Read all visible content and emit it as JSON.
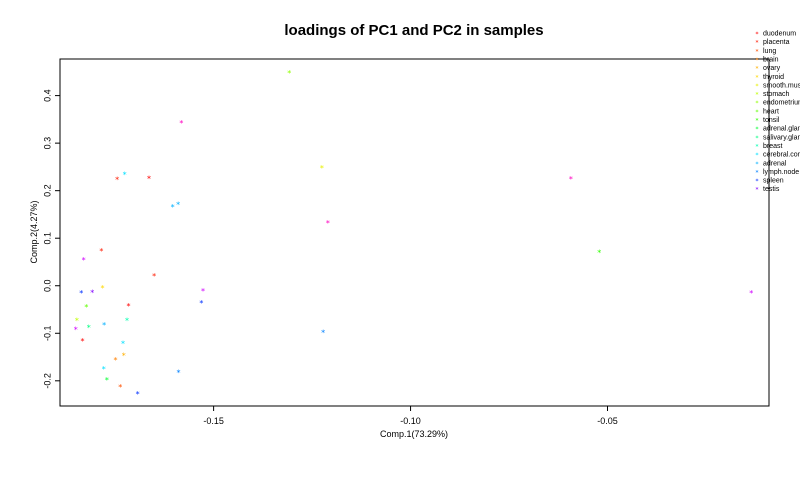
{
  "chart_data": {
    "type": "scatter",
    "title": "loadings of PC1 and PC2 in samples",
    "xlabel": "Comp.1(73.29%)",
    "ylabel": "Comp.2(4.27%)",
    "xlim": [
      -0.189,
      -0.009
    ],
    "ylim": [
      -0.253,
      0.477
    ],
    "xticks": [
      -0.15,
      -0.1,
      -0.05
    ],
    "xtick_labels": [
      "-0.15",
      "-0.10",
      "-0.05"
    ],
    "yticks": [
      -0.2,
      -0.1,
      0.0,
      0.1,
      0.2,
      0.3,
      0.4
    ],
    "ytick_labels": [
      "-0.2",
      "-0.1",
      "0.0",
      "0.1",
      "0.2",
      "0.3",
      "0.4"
    ],
    "marker": "*",
    "legend_position": "top-right",
    "series": [
      {
        "name": "duodenum",
        "color": "#FF0000",
        "points": [
          [
            -0.1833,
            -0.116
          ],
          [
            -0.1664,
            0.226
          ],
          [
            -0.1716,
            -0.043
          ]
        ]
      },
      {
        "name": "placenta",
        "color": "#FF1A00",
        "points": [
          [
            -0.1745,
            0.223
          ],
          [
            -0.1785,
            0.073
          ],
          [
            -0.1651,
            0.021
          ]
        ]
      },
      {
        "name": "lung",
        "color": "#FF5000",
        "points": [
          [
            -0.1737,
            -0.213
          ]
        ]
      },
      {
        "name": "brain",
        "color": "#FF8000",
        "points": [
          [
            -0.1749,
            -0.156
          ]
        ]
      },
      {
        "name": "ovary",
        "color": "#FFB000",
        "points": [
          [
            -0.1728,
            -0.147
          ]
        ]
      },
      {
        "name": "thyroid",
        "color": "#FFD800",
        "points": [
          [
            -0.1782,
            -0.005
          ]
        ]
      },
      {
        "name": "smooth.muscle",
        "color": "#E8F000",
        "points": [
          [
            -0.1225,
            0.248
          ]
        ]
      },
      {
        "name": "stomach",
        "color": "#C0FF00",
        "points": [
          [
            -0.1847,
            -0.073
          ]
        ]
      },
      {
        "name": "endometrium",
        "color": "#90FF00",
        "points": [
          [
            -0.1308,
            0.448
          ]
        ]
      },
      {
        "name": "heart",
        "color": "#60FF00",
        "points": [
          [
            -0.1823,
            -0.045
          ]
        ]
      },
      {
        "name": "tonsil",
        "color": "#30FF00",
        "points": [
          [
            -0.0521,
            0.07
          ]
        ]
      },
      {
        "name": "adrenal.gland",
        "color": "#00FF30",
        "points": [
          [
            -0.1771,
            -0.198
          ]
        ]
      },
      {
        "name": "salivary.gland",
        "color": "#00FF80",
        "points": [
          [
            -0.1817,
            -0.088
          ]
        ]
      },
      {
        "name": "breast",
        "color": "#00FFB0",
        "points": [
          [
            -0.172,
            -0.073
          ]
        ]
      },
      {
        "name": "cerebral.cortex",
        "color": "#00E0FF",
        "points": [
          [
            -0.1779,
            -0.175
          ],
          [
            -0.1726,
            0.234
          ],
          [
            -0.173,
            -0.121
          ]
        ]
      },
      {
        "name": "adrenal",
        "color": "#00B0FF",
        "points": [
          [
            -0.159,
            0.171
          ],
          [
            -0.1778,
            -0.083
          ],
          [
            -0.1604,
            0.166
          ]
        ]
      },
      {
        "name": "lymph.node",
        "color": "#0080FF",
        "points": [
          [
            -0.1589,
            -0.183
          ],
          [
            -0.1222,
            -0.098
          ]
        ]
      },
      {
        "name": "spleen",
        "color": "#0030FF",
        "points": [
          [
            -0.1531,
            -0.036
          ],
          [
            -0.1836,
            -0.015
          ],
          [
            -0.1693,
            -0.228
          ]
        ]
      },
      {
        "name": "testis",
        "color": "#8000FF",
        "points": [
          [
            -0.1808,
            -0.014
          ]
        ]
      },
      {
        "name": "",
        "color": "#D000FF",
        "points": [
          [
            -0.183,
            0.054
          ],
          [
            -0.1527,
            -0.011
          ],
          [
            -0.0135,
            -0.015
          ],
          [
            -0.185,
            -0.092
          ]
        ]
      },
      {
        "name": "",
        "color": "#FF00C0",
        "points": [
          [
            -0.121,
            0.132
          ],
          [
            -0.1582,
            0.342
          ],
          [
            -0.0593,
            0.225
          ]
        ]
      }
    ]
  }
}
